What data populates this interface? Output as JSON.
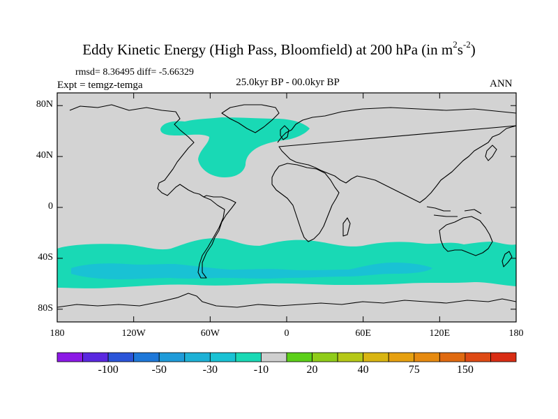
{
  "title": {
    "main": "Eddy Kinetic Energy (High Pass, Bloomfield) at 200 hPa (in m",
    "sup1": "2",
    "mid": "s",
    "sup2": "-2",
    "close": ")"
  },
  "stats": "rmsd= 8.36495 diff= -5.66329",
  "expt": "Expt = temgz-temga",
  "subtitle": "25.0kyr BP - 00.0kyr BP",
  "season": "ANN",
  "map": {
    "projection": "cylindrical-equidistant",
    "lon_range": [
      -180,
      180
    ],
    "lat_range": [
      -90,
      90
    ],
    "lat_ticks": [
      {
        "value": 80,
        "label": "80N"
      },
      {
        "value": 40,
        "label": "40N"
      },
      {
        "value": 0,
        "label": "0"
      },
      {
        "value": -40,
        "label": "40S"
      },
      {
        "value": -80,
        "label": "80S"
      }
    ],
    "lon_ticks": [
      {
        "value": -180,
        "label": "180"
      },
      {
        "value": -120,
        "label": "120W"
      },
      {
        "value": -60,
        "label": "60W"
      },
      {
        "value": 0,
        "label": "0"
      },
      {
        "value": 60,
        "label": "60E"
      },
      {
        "value": 120,
        "label": "120E"
      },
      {
        "value": 180,
        "label": "180"
      }
    ],
    "background_color": "#d3d3d3",
    "field_regions": [
      {
        "name": "north-atlantic-eddy-decrease",
        "level": "-20 to -10",
        "color": "#19d9b5"
      },
      {
        "name": "southern-ocean-eddy-decrease",
        "level": "-20 to -10",
        "color": "#19d9b5"
      },
      {
        "name": "southern-ocean-eddy-core",
        "level": "-30 to -20",
        "color": "#19c2d4"
      }
    ]
  },
  "colorbar": {
    "colors": [
      "#8c19e6",
      "#5a28e0",
      "#2b55d9",
      "#1e78d9",
      "#1f9bd9",
      "#1db1d6",
      "#19c2d4",
      "#19d9b5",
      "#cfcfcf",
      "#5ccf19",
      "#8fcc19",
      "#b5c817",
      "#d9b512",
      "#e6a010",
      "#e68a10",
      "#e06a10",
      "#de4a14",
      "#d92d14"
    ],
    "labels": [
      {
        "boundary": 2,
        "text": "-100"
      },
      {
        "boundary": 4,
        "text": "-50"
      },
      {
        "boundary": 6,
        "text": "-30"
      },
      {
        "boundary": 8,
        "text": "-10"
      },
      {
        "boundary": 10,
        "text": "20"
      },
      {
        "boundary": 12,
        "text": "40"
      },
      {
        "boundary": 14,
        "text": "75"
      },
      {
        "boundary": 16,
        "text": "150"
      }
    ]
  }
}
